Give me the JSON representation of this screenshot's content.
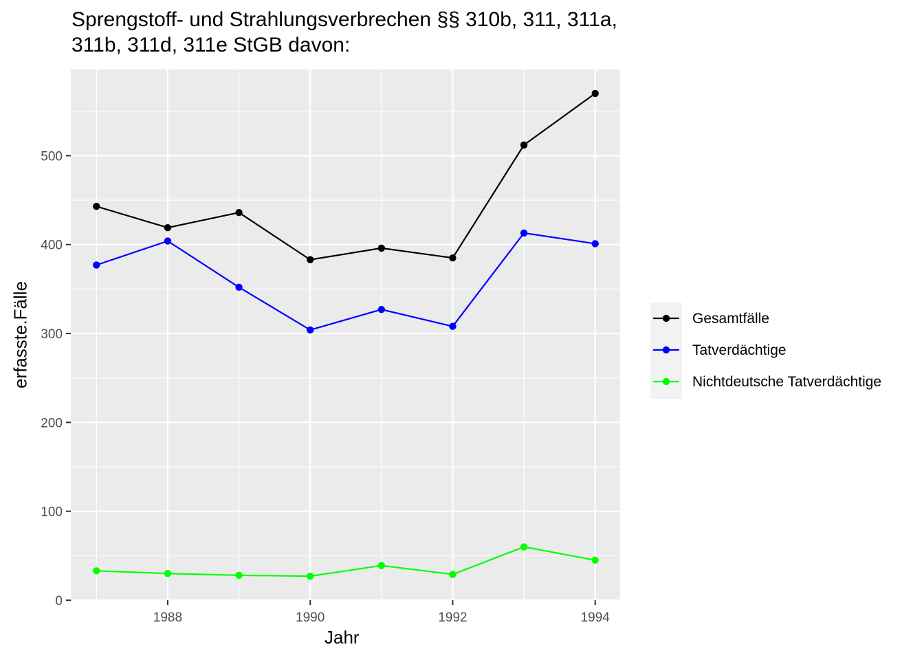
{
  "chart_data": {
    "type": "line",
    "title_lines": [
      "Sprengstoff- und Strahlungsverbrechen §§ 310b, 311, 311a,",
      "311b, 311d, 311e StGB davon:"
    ],
    "xlabel": "Jahr",
    "ylabel": "erfasste.Fälle",
    "x": [
      1987,
      1988,
      1989,
      1990,
      1991,
      1992,
      1993,
      1994
    ],
    "x_ticks": [
      1988,
      1990,
      1992,
      1994
    ],
    "y_ticks": [
      0,
      100,
      200,
      300,
      400,
      500
    ],
    "xlim": [
      1986.64,
      1994.35
    ],
    "ylim": [
      0,
      597
    ],
    "grid": true,
    "legend_position": "right",
    "series": [
      {
        "name": "Gesamtfälle",
        "color": "#000000",
        "values": [
          443,
          419,
          436,
          383,
          396,
          385,
          512,
          570
        ]
      },
      {
        "name": "Tatverdächtige",
        "color": "#0000ff",
        "values": [
          377,
          404,
          352,
          304,
          327,
          308,
          413,
          401
        ]
      },
      {
        "name": "Nichtdeutsche Tatverdächtige",
        "color": "#00ff00",
        "values": [
          33,
          30,
          28,
          27,
          39,
          29,
          60,
          45
        ]
      }
    ]
  }
}
